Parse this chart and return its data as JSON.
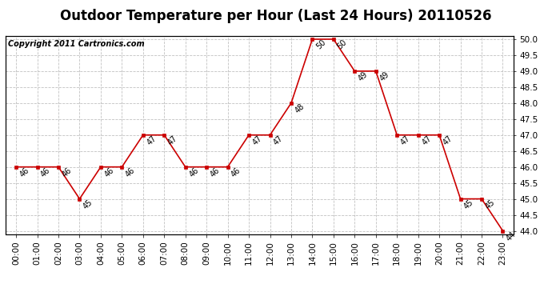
{
  "title": "Outdoor Temperature per Hour (Last 24 Hours) 20110526",
  "copyright": "Copyright 2011 Cartronics.com",
  "hours": [
    "00:00",
    "01:00",
    "02:00",
    "03:00",
    "04:00",
    "05:00",
    "06:00",
    "07:00",
    "08:00",
    "09:00",
    "10:00",
    "11:00",
    "12:00",
    "13:00",
    "14:00",
    "15:00",
    "16:00",
    "17:00",
    "18:00",
    "19:00",
    "20:00",
    "21:00",
    "22:00",
    "23:00"
  ],
  "values": [
    46,
    46,
    46,
    45,
    46,
    46,
    47,
    47,
    46,
    46,
    46,
    47,
    47,
    48,
    50,
    50,
    49,
    49,
    47,
    47,
    47,
    45,
    45,
    44
  ],
  "line_color": "#cc0000",
  "marker_color": "#cc0000",
  "grid_color": "#bbbbbb",
  "bg_color": "#ffffff",
  "ylim_min": 44.0,
  "ylim_max": 50.0,
  "ytick_step": 0.5,
  "title_fontsize": 12,
  "copyright_fontsize": 7,
  "label_fontsize": 7,
  "tick_fontsize": 7.5
}
